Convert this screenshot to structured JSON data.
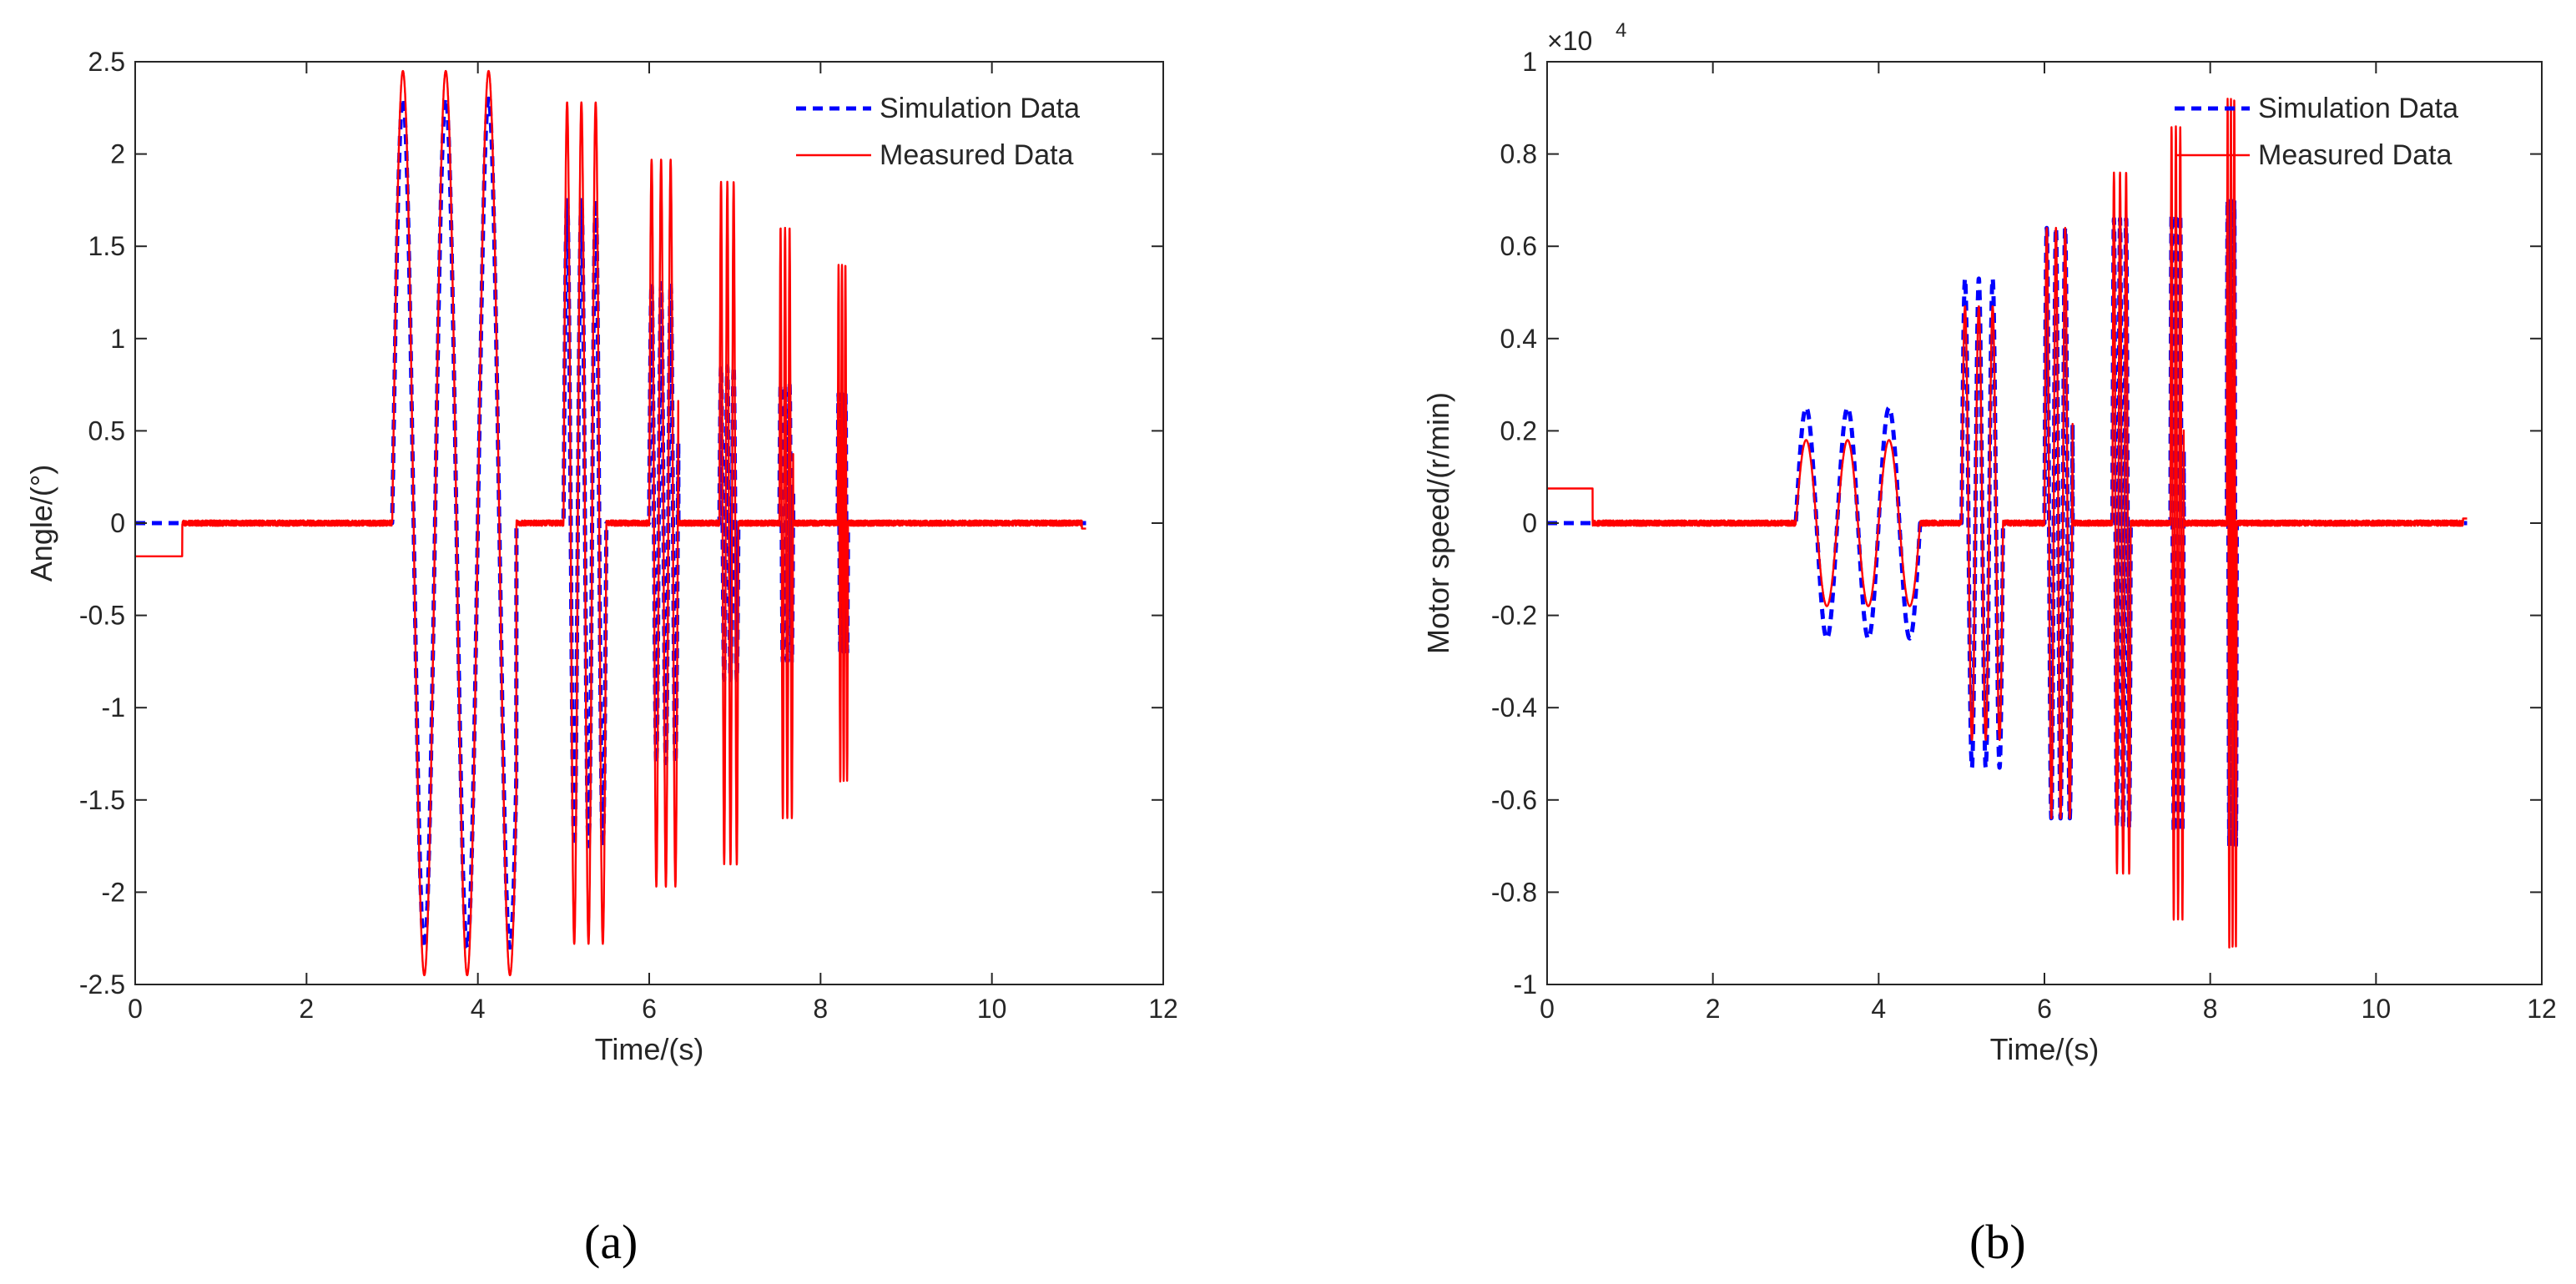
{
  "chart_data": [
    {
      "type": "line",
      "panel_label": "(a)",
      "xlabel": "Time/(s)",
      "ylabel": "Angle/(°)",
      "xlim": [
        0,
        12
      ],
      "ylim": [
        -2.5,
        2.5
      ],
      "xticks": [
        0,
        2,
        4,
        6,
        8,
        10,
        12
      ],
      "yticks": [
        2.5,
        2,
        1.5,
        1,
        0.5,
        0,
        -0.5,
        -1,
        -1.5,
        -2,
        -2.5
      ],
      "grid": false,
      "legend_position": "top-right",
      "series": [
        {
          "name": "Simulation Data",
          "style": "dashed",
          "color": "#0000ff"
        },
        {
          "name": "Measured Data",
          "style": "solid",
          "color": "#ff0000"
        }
      ],
      "segments": {
        "initial_offset": {
          "sim": 0,
          "meas": -0.18,
          "end": 0.55
        },
        "bursts": [
          {
            "t0": 3.0,
            "t1": 4.45,
            "freq": 2,
            "amp_meas": 2.45,
            "amp_sim": 2.3,
            "exp": 1
          },
          {
            "t0": 5.0,
            "t1": 5.5,
            "freq": 6,
            "amp_meas": 2.28,
            "amp_sim": 1.75,
            "exp": 1
          },
          {
            "t0": 6.0,
            "t1": 6.34,
            "freq": 9,
            "amp_meas": 1.97,
            "amp_sim": 1.3,
            "exp": 1
          },
          {
            "t0": 6.82,
            "t1": 7.04,
            "freq": 13.6,
            "amp_meas": 1.85,
            "amp_sim": 0.85,
            "exp": 1
          },
          {
            "t0": 7.52,
            "t1": 7.68,
            "freq": 19,
            "amp_meas": 1.6,
            "amp_sim": 0.75,
            "exp": 1
          },
          {
            "t0": 8.2,
            "t1": 8.32,
            "freq": 25,
            "amp_meas": 1.4,
            "amp_sim": 0.7,
            "exp": 1
          }
        ],
        "end_time": 11.1,
        "end_value": -0.03
      }
    },
    {
      "type": "line",
      "panel_label": "(b)",
      "xlabel": "Time/(s)",
      "ylabel": "Motor speed/(r/min)",
      "y_multiplier": "×10",
      "y_multiplier_exponent": "4",
      "xlim": [
        0,
        12
      ],
      "ylim": [
        -1,
        1
      ],
      "xticks": [
        0,
        2,
        4,
        6,
        8,
        10,
        12
      ],
      "yticks": [
        1,
        0.8,
        0.6,
        0.4,
        0.2,
        0,
        -0.2,
        -0.4,
        -0.6,
        -0.8,
        -1
      ],
      "grid": false,
      "legend_position": "top-right",
      "series": [
        {
          "name": "Simulation Data",
          "style": "dashed",
          "color": "#0000ff"
        },
        {
          "name": "Measured Data",
          "style": "solid",
          "color": "#ff0000"
        }
      ],
      "segments": {
        "initial_offset": {
          "sim": 0,
          "meas": 0.075,
          "end": 0.55
        },
        "bursts": [
          {
            "t0": 3.0,
            "t1": 4.5,
            "freq": 2,
            "amp_meas": 0.18,
            "amp_sim": 0.25,
            "exp": 1
          },
          {
            "t0": 5.0,
            "t1": 5.5,
            "freq": 6,
            "amp_meas": 0.47,
            "amp_sim": 0.53,
            "exp": 1
          },
          {
            "t0": 6.0,
            "t1": 6.34,
            "freq": 9,
            "amp_meas": 0.64,
            "amp_sim": 0.64,
            "exp": 1
          },
          {
            "t0": 6.82,
            "t1": 7.04,
            "freq": 13.6,
            "amp_meas": 0.76,
            "amp_sim": 0.66,
            "exp": 1
          },
          {
            "t0": 7.52,
            "t1": 7.68,
            "freq": 19,
            "amp_meas": 0.86,
            "amp_sim": 0.67,
            "exp": 1
          },
          {
            "t0": 8.2,
            "t1": 8.32,
            "freq": 25,
            "amp_meas": 0.92,
            "amp_sim": 0.7,
            "exp": 1
          }
        ],
        "end_time": 11.1,
        "end_value": 0.01
      }
    }
  ]
}
